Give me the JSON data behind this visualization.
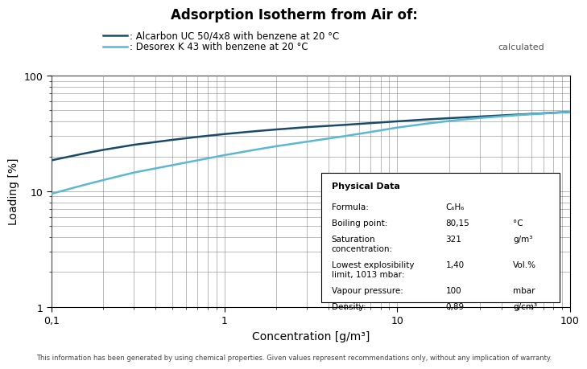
{
  "title": "Adsorption Isotherm from Air of:",
  "legend_line1": " — : Alcarbon UC 50/4x8 with benzene at 20 °C",
  "legend_line2": " — : Desorex K 43 with benzene at 20 °C",
  "xlabel": "Concentration [g/m³]",
  "ylabel": "Loading [%]",
  "xlim": [
    0.1,
    100
  ],
  "ylim": [
    1,
    100
  ],
  "color_alcarbon": "#1a4a6b",
  "color_desorex": "#5bb8d4",
  "footnote": "This information has been generated by using chemical properties. Given values represent recommendations only, without any implication of warranty.",
  "calculated_label": "calculated",
  "physical_data_title": "Physical Data",
  "physical_data": [
    [
      "Formula:",
      "C₆H₆",
      ""
    ],
    [
      "Boiling point:",
      "80,15",
      "°C"
    ],
    [
      "Saturation\nconcentration:",
      "321",
      "g/m³"
    ],
    [
      "Lowest explosibility\nlimit, 1013 mbar:",
      "1,40",
      "Vol.%"
    ],
    [
      "Vapour pressure:",
      "100",
      "mbar"
    ],
    [
      "Density:",
      "0,89",
      "g/cm³"
    ]
  ],
  "alcarbon_x": [
    0.1,
    0.15,
    0.2,
    0.3,
    0.5,
    0.7,
    1.0,
    1.5,
    2.0,
    3.0,
    5.0,
    7.0,
    10.0,
    15.0,
    20.0,
    30.0,
    50.0,
    70.0,
    100.0
  ],
  "alcarbon_y": [
    18.5,
    21.0,
    22.8,
    25.2,
    27.8,
    29.5,
    31.2,
    33.0,
    34.2,
    35.8,
    37.5,
    38.8,
    40.2,
    41.8,
    42.8,
    44.2,
    46.0,
    47.2,
    48.5
  ],
  "desorex_x": [
    0.1,
    0.15,
    0.2,
    0.3,
    0.5,
    0.7,
    1.0,
    1.5,
    2.0,
    3.0,
    5.0,
    7.0,
    10.0,
    15.0,
    20.0,
    30.0,
    50.0,
    70.0,
    100.0
  ],
  "desorex_y": [
    9.5,
    11.2,
    12.5,
    14.5,
    16.8,
    18.5,
    20.5,
    22.8,
    24.5,
    26.8,
    30.0,
    32.5,
    35.5,
    38.5,
    40.5,
    43.0,
    45.5,
    47.0,
    48.5
  ],
  "bg_color": "#ffffff",
  "grid_color": "#888888",
  "tick_label_fontsize": 9,
  "axis_label_fontsize": 10,
  "title_fontsize": 12
}
